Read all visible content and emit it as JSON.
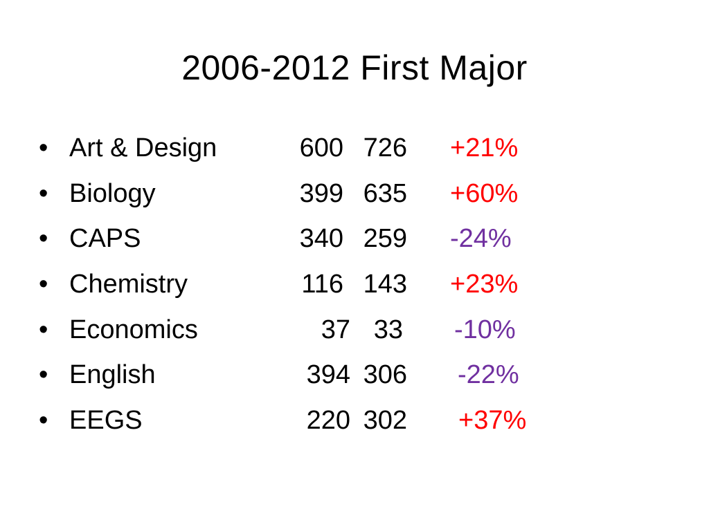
{
  "slide": {
    "title": "2006-2012 First Major",
    "bullet_glyph": "•",
    "rows": [
      {
        "label": "Art & Design",
        "value_2006": "600",
        "value_2012": "726",
        "change": "+21%",
        "direction": "up"
      },
      {
        "label": "Biology",
        "value_2006": "399",
        "value_2012": "635",
        "change": "+60%",
        "direction": "up"
      },
      {
        "label": "CAPS",
        "value_2006": "340",
        "value_2012": "259",
        "change": "-24%",
        "direction": "down"
      },
      {
        "label": "Chemistry",
        "value_2006": "116",
        "value_2012": "143",
        "change": "+23%",
        "direction": "up"
      },
      {
        "label": "Economics",
        "value_2006": "37",
        "value_2012": "33",
        "change": "-10%",
        "direction": "down"
      },
      {
        "label": "English",
        "value_2006": "394",
        "value_2012": "306",
        "change": "-22%",
        "direction": "down"
      },
      {
        "label": "EEGS",
        "value_2006": "220",
        "value_2012": "302",
        "change": "+37%",
        "direction": "up"
      }
    ]
  },
  "colors": {
    "increase": "#ff0000",
    "decrease": "#7030a0",
    "text": "#000000",
    "background": "#ffffff"
  }
}
